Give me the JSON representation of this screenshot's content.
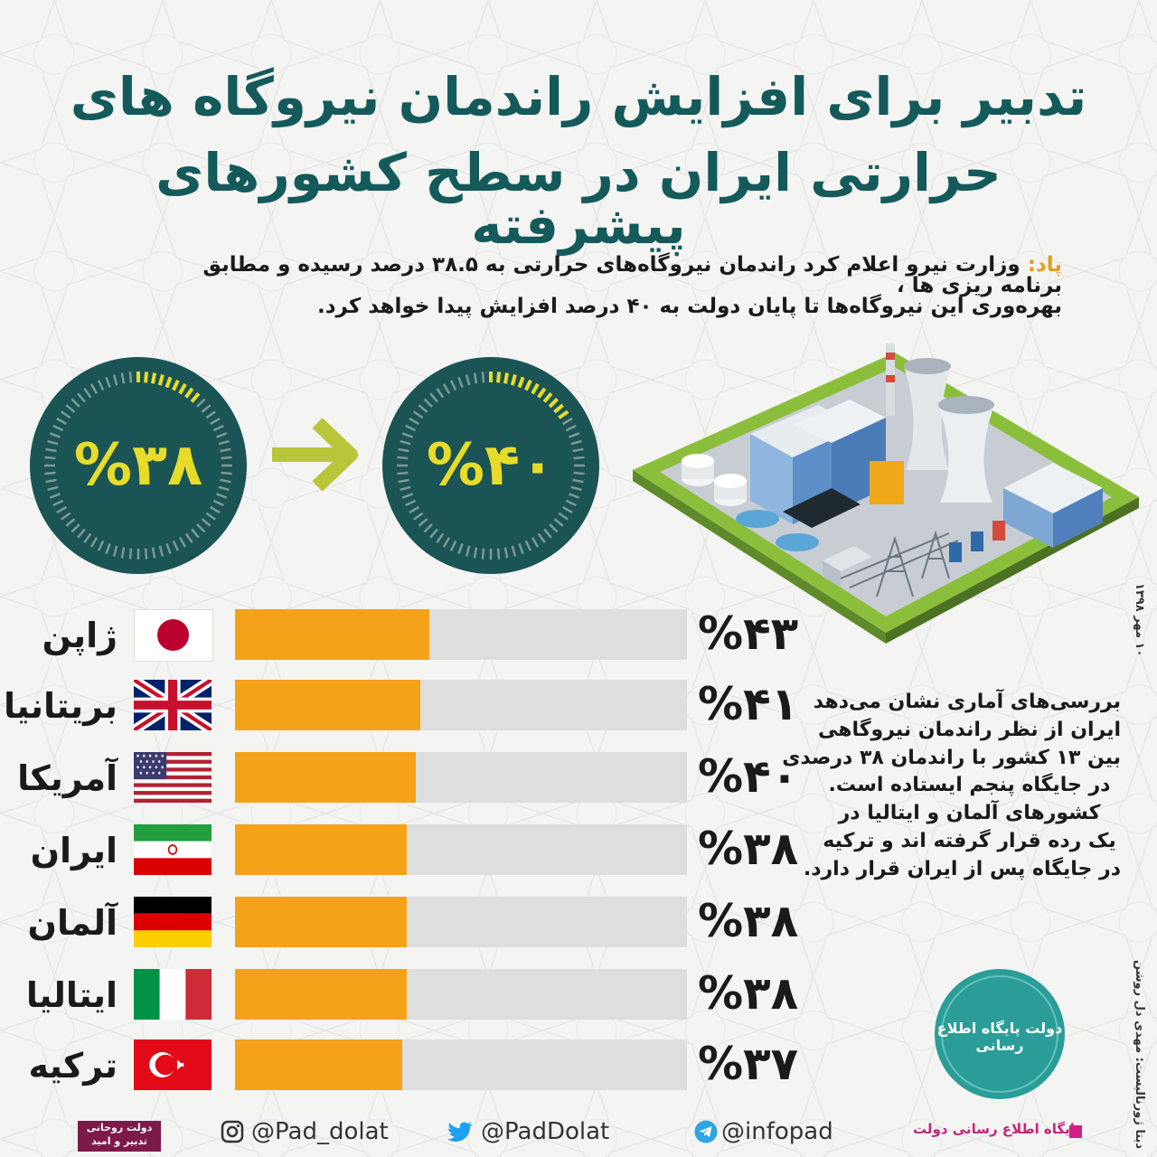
{
  "title_line1": "تدبیر برای افزایش راندمان نیروگاه های",
  "title_line2": "حرارتی ایران در سطح کشورهای پیشرفته",
  "lead_label": "پاد:",
  "lead_line1": "وزارت نیرو اعلام کرد راندمان نیروگاه‌های حرارتی به ۳۸.۵ درصد رسیده و مطابق برنامه ریزی ها ،",
  "lead_line2": "بهره‌وری این نیروگاه‌ها تا پایان دولت به ۴۰ درصد افزایش پیدا خواهد کرد.",
  "gauges": [
    {
      "label": "%۳۸",
      "value": 38
    },
    {
      "label": "%۴۰",
      "value": 40
    }
  ],
  "colors": {
    "title": "#145a5a",
    "gauge_bg": "#1b5454",
    "gauge_text": "#e7dc2a",
    "arrow": "#b9c63a",
    "bar_fill": "#f5a21b",
    "bar_track": "#dedede",
    "lead_label": "#e89a1a"
  },
  "chart_data": {
    "type": "bar",
    "orientation": "horizontal",
    "categories": [
      "ژاپن",
      "بریتانیا",
      "آمریکا",
      "ایران",
      "آلمان",
      "ایتالیا",
      "ترکیه"
    ],
    "values": [
      43,
      41,
      40,
      38,
      38,
      38,
      37
    ],
    "value_labels": [
      "%۴۳",
      "%۴۱",
      "%۴۰",
      "%۳۸",
      "%۳۸",
      "%۳۸",
      "%۳۷"
    ],
    "flags": [
      "japan-flag",
      "uk-flag",
      "usa-flag",
      "iran-flag",
      "germany-flag",
      "italy-flag",
      "turkey-flag"
    ],
    "xlim": [
      0,
      100
    ],
    "grid": false
  },
  "side_note": [
    "بررسی‌های آماری نشان می‌دهد",
    "ایران از نظر راندمان نیروگاهی",
    "بین ۱۳ کشور با راندمان ۳۸ درصدی",
    "در جایگاه پنجم ایستاده است.",
    "کشورهای آلمان و ایتالیا در",
    "یک رده قرار گرفته اند و ترکیه",
    "در جایگاه پس از ایران قرار دارد."
  ],
  "date_text": "۱۰ مهر ۱۳۹۸",
  "credit_text": "دیتا ژورنالیست: مهدی دل روشن",
  "logo_text": "دولت پایگاه اطلاع رسانی",
  "footer": {
    "brand_box": "دولت روحانی تدبیر و امید",
    "instagram": "@Pad_dolat",
    "twitter": "@PadDolat",
    "telegram": "@infopad",
    "site_name": "پایگاه اطلاع رسانی دولت"
  }
}
